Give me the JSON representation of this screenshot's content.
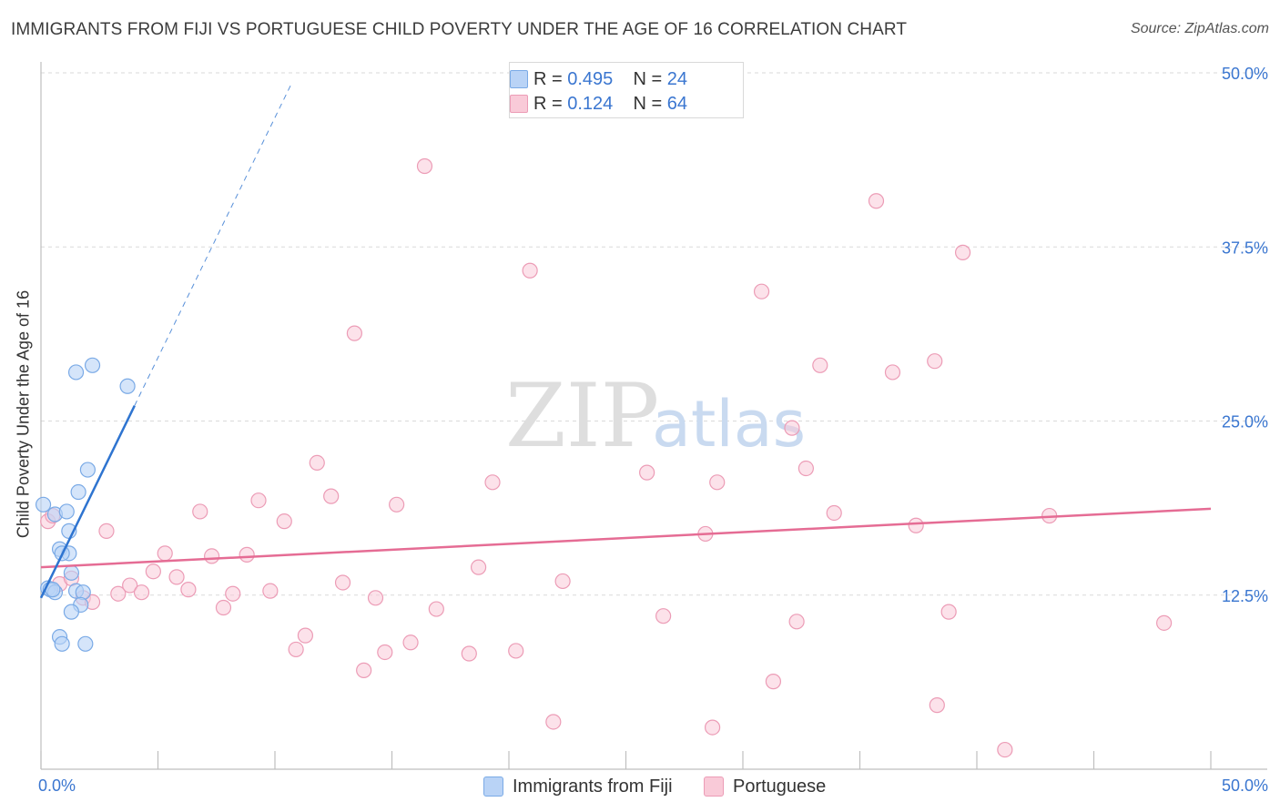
{
  "header": {
    "title": "IMMIGRANTS FROM FIJI VS PORTUGUESE CHILD POVERTY UNDER THE AGE OF 16 CORRELATION CHART",
    "source": "Source: ZipAtlas.com"
  },
  "watermark": {
    "zip": "ZIP",
    "atlas": "atlas"
  },
  "legend": {
    "rows": [
      {
        "r_label": "R =",
        "r_value": "0.495",
        "n_label": "N =",
        "n_value": "24"
      },
      {
        "r_label": "R =",
        "r_value": "0.124",
        "n_label": "N =",
        "n_value": "64"
      }
    ],
    "bottom": [
      {
        "label": "Immigrants from Fiji"
      },
      {
        "label": "Portuguese"
      }
    ]
  },
  "colors": {
    "blue_fill": "#b9d3f6",
    "blue_stroke": "#7aaae6",
    "blue_line": "#2e74d0",
    "pink_fill": "#f9cad8",
    "pink_stroke": "#ec9cb6",
    "pink_line": "#e56c94",
    "tick_text": "#3a76d0",
    "grid": "#d9d9d9"
  },
  "chart_data": {
    "type": "scatter",
    "title": "IMMIGRANTS FROM FIJI VS PORTUGUESE CHILD POVERTY UNDER THE AGE OF 16 CORRELATION CHART",
    "xlabel": "",
    "ylabel": "Child Poverty Under the Age of 16",
    "xlim": [
      0,
      50
    ],
    "ylim": [
      0,
      50
    ],
    "x_tick_labels": [
      "0.0%",
      "50.0%"
    ],
    "y_ticks": [
      {
        "value": 12.5,
        "label": "12.5%"
      },
      {
        "value": 25.0,
        "label": "25.0%"
      },
      {
        "value": 37.5,
        "label": "37.5%"
      },
      {
        "value": 50.0,
        "label": "50.0%"
      }
    ],
    "series": [
      {
        "name": "Immigrants from Fiji",
        "R": 0.495,
        "N": 24,
        "points": [
          [
            0.1,
            19.0
          ],
          [
            0.6,
            18.3
          ],
          [
            1.1,
            18.5
          ],
          [
            1.2,
            17.1
          ],
          [
            0.8,
            15.8
          ],
          [
            1.2,
            15.5
          ],
          [
            0.9,
            15.5
          ],
          [
            1.3,
            14.1
          ],
          [
            0.3,
            13.0
          ],
          [
            0.4,
            12.9
          ],
          [
            0.6,
            12.7
          ],
          [
            1.5,
            12.8
          ],
          [
            1.8,
            12.7
          ],
          [
            1.7,
            11.8
          ],
          [
            1.3,
            11.3
          ],
          [
            0.8,
            9.5
          ],
          [
            0.9,
            9.0
          ],
          [
            1.9,
            9.0
          ],
          [
            2.0,
            21.5
          ],
          [
            1.6,
            19.9
          ],
          [
            1.5,
            28.5
          ],
          [
            2.2,
            29.0
          ],
          [
            3.7,
            27.5
          ],
          [
            0.5,
            12.9
          ]
        ],
        "trend": {
          "x": [
            0,
            4.0
          ],
          "y": [
            12.3,
            26.1
          ]
        },
        "trend_extension": {
          "x": [
            4.0,
            10.7
          ],
          "y": [
            26.1,
            49.2
          ]
        }
      },
      {
        "name": "Portuguese",
        "R": 0.124,
        "N": 64,
        "points": [
          [
            0.3,
            17.8
          ],
          [
            0.5,
            18.2
          ],
          [
            0.8,
            13.3
          ],
          [
            1.3,
            13.7
          ],
          [
            1.8,
            12.3
          ],
          [
            2.2,
            12.0
          ],
          [
            2.8,
            17.1
          ],
          [
            3.3,
            12.6
          ],
          [
            3.8,
            13.2
          ],
          [
            4.3,
            12.7
          ],
          [
            4.8,
            14.2
          ],
          [
            5.3,
            15.5
          ],
          [
            5.8,
            13.8
          ],
          [
            6.3,
            12.9
          ],
          [
            6.8,
            18.5
          ],
          [
            7.3,
            15.3
          ],
          [
            7.8,
            11.6
          ],
          [
            8.2,
            12.6
          ],
          [
            8.8,
            15.4
          ],
          [
            9.3,
            19.3
          ],
          [
            9.8,
            12.8
          ],
          [
            10.4,
            17.8
          ],
          [
            10.9,
            8.6
          ],
          [
            11.3,
            9.6
          ],
          [
            11.8,
            22.0
          ],
          [
            12.4,
            19.6
          ],
          [
            12.9,
            13.4
          ],
          [
            13.4,
            31.3
          ],
          [
            13.8,
            7.1
          ],
          [
            14.3,
            12.3
          ],
          [
            14.7,
            8.4
          ],
          [
            15.2,
            19.0
          ],
          [
            15.8,
            9.1
          ],
          [
            16.4,
            43.3
          ],
          [
            16.9,
            11.5
          ],
          [
            18.3,
            8.3
          ],
          [
            18.7,
            14.5
          ],
          [
            19.3,
            20.6
          ],
          [
            20.3,
            8.5
          ],
          [
            20.9,
            35.8
          ],
          [
            21.9,
            3.4
          ],
          [
            22.3,
            13.5
          ],
          [
            25.9,
            21.3
          ],
          [
            26.6,
            11.0
          ],
          [
            28.4,
            16.9
          ],
          [
            28.7,
            3.0
          ],
          [
            28.9,
            20.6
          ],
          [
            30.8,
            34.3
          ],
          [
            31.3,
            6.3
          ],
          [
            32.1,
            24.5
          ],
          [
            32.3,
            10.6
          ],
          [
            32.7,
            21.6
          ],
          [
            33.3,
            29.0
          ],
          [
            33.9,
            18.4
          ],
          [
            35.7,
            40.8
          ],
          [
            36.4,
            28.5
          ],
          [
            37.4,
            17.5
          ],
          [
            38.2,
            29.3
          ],
          [
            38.3,
            4.6
          ],
          [
            38.8,
            11.3
          ],
          [
            39.4,
            37.1
          ],
          [
            41.2,
            1.4
          ],
          [
            43.1,
            18.2
          ],
          [
            48.0,
            10.5
          ]
        ],
        "trend": {
          "x": [
            0,
            50
          ],
          "y": [
            14.5,
            18.7
          ]
        }
      }
    ]
  }
}
